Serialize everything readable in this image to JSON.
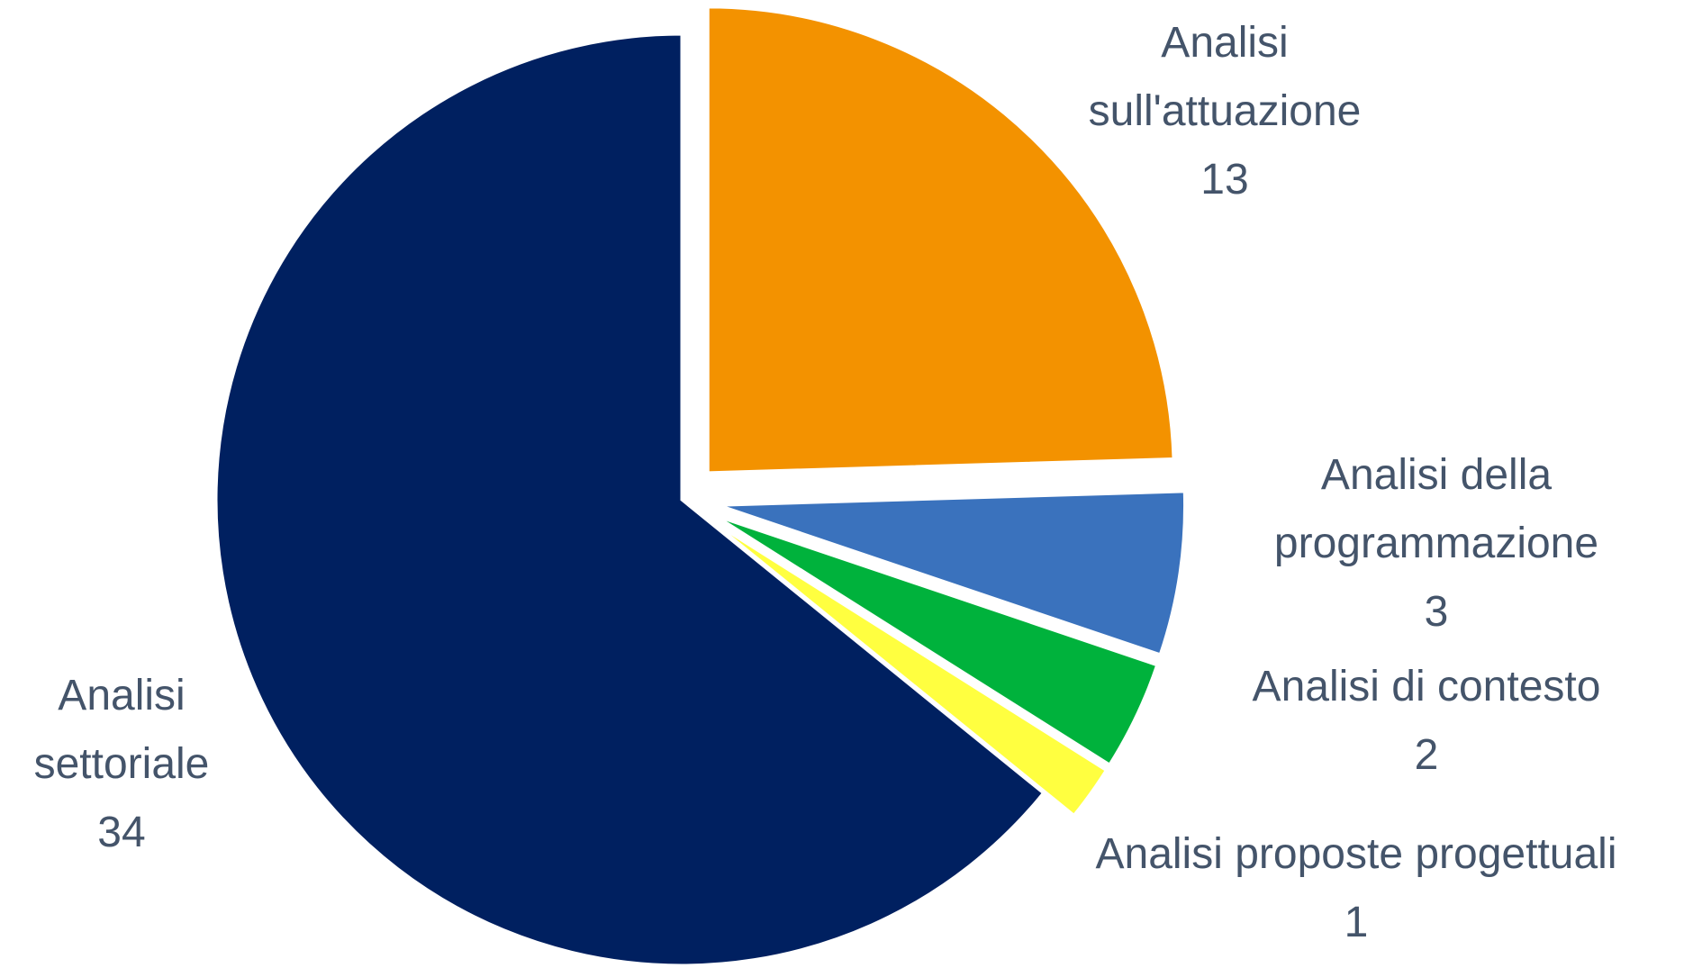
{
  "chart_data": {
    "type": "pie",
    "categories": [
      "Analisi sull'attuazione",
      "Analisi della programmazione",
      "Analisi di contesto",
      "Analisi proposte progettuali",
      "Analisi settoriale"
    ],
    "values": [
      13,
      3,
      2,
      1,
      34
    ],
    "colors": [
      "#f39200",
      "#3a72bd",
      "#00b23c",
      "#ffff40",
      "#002060"
    ]
  }
}
